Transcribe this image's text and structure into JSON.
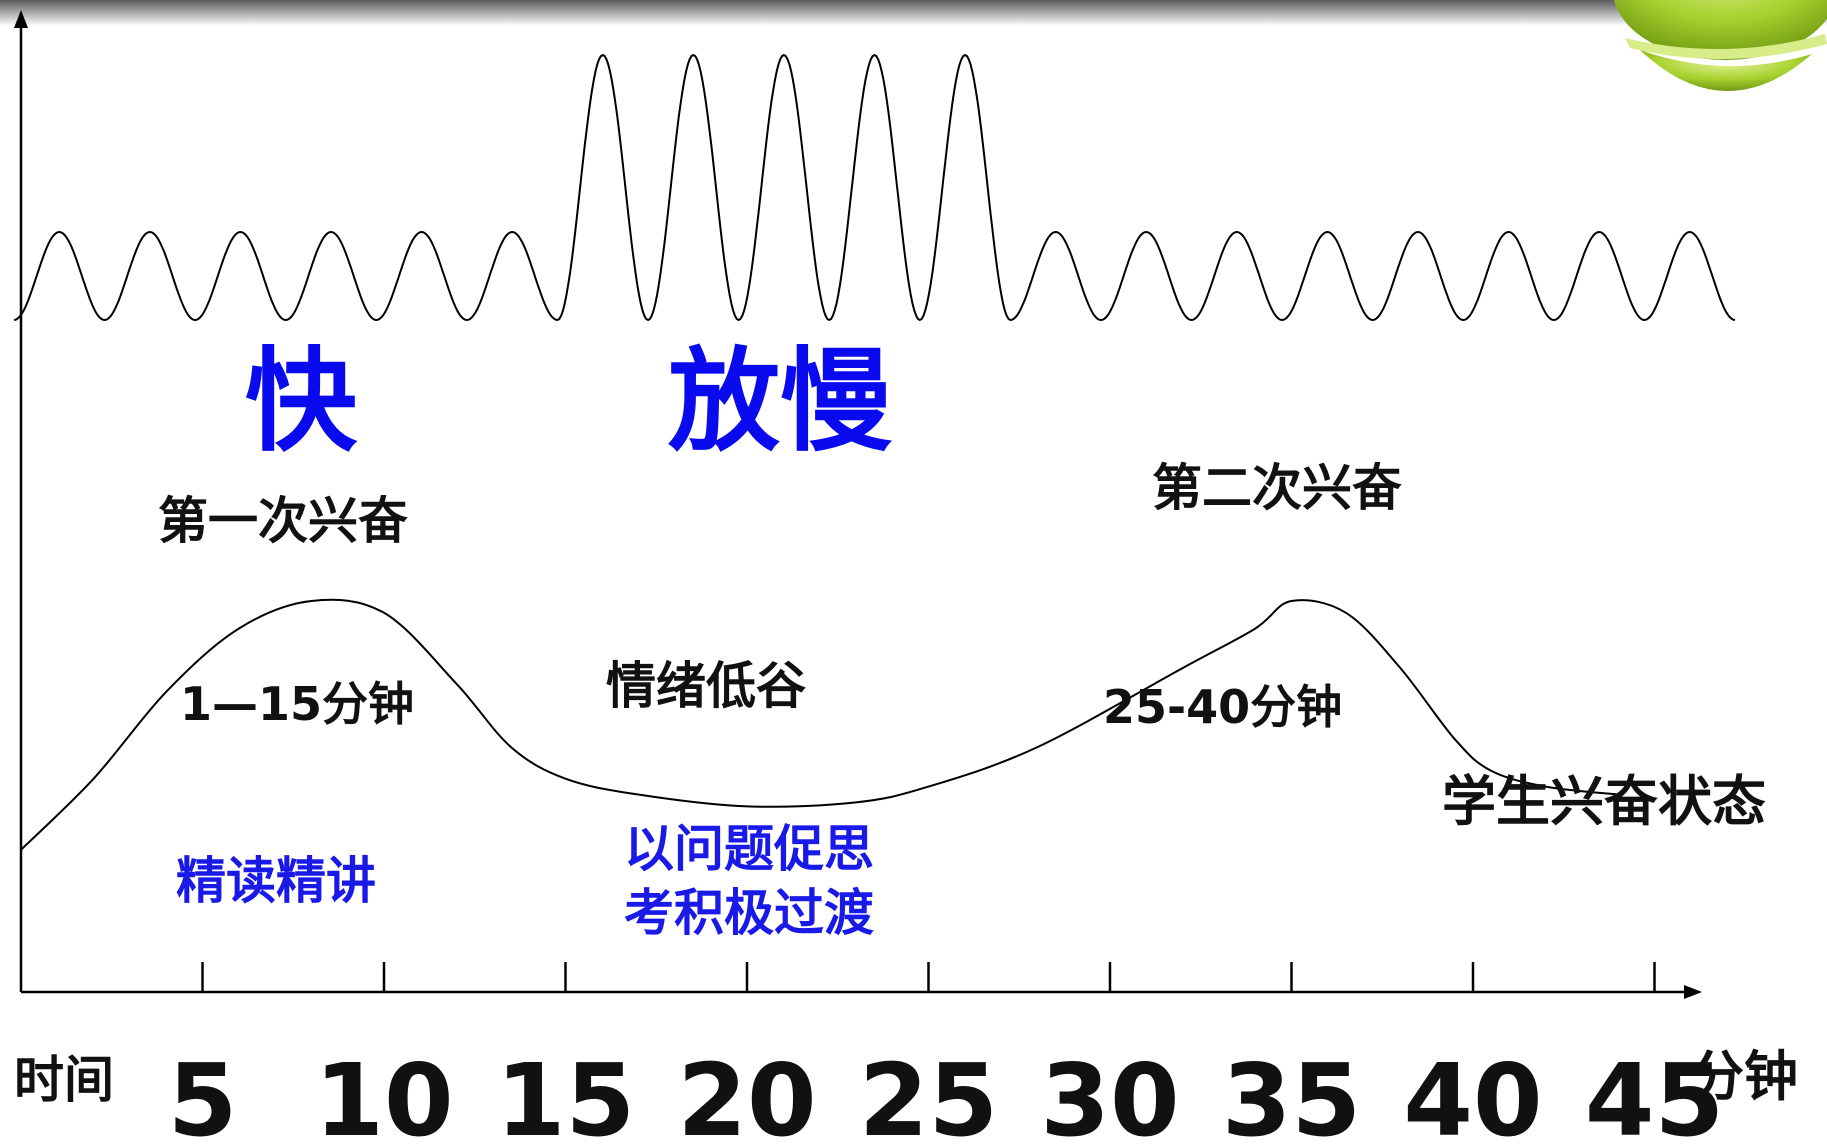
{
  "chart_data": {
    "type": "line",
    "x_axis": {
      "label": "时间",
      "unit": "分钟",
      "ticks": [
        "5",
        "10",
        "15",
        "20",
        "25",
        "30",
        "35",
        "40",
        "45"
      ],
      "range": [
        0,
        45
      ]
    },
    "series": [
      {
        "name": "学生兴奋状态",
        "points": [
          [
            0,
            18
          ],
          [
            2,
            27
          ],
          [
            4,
            38
          ],
          [
            6,
            46
          ],
          [
            8,
            49.5
          ],
          [
            10,
            48
          ],
          [
            12,
            39
          ],
          [
            13.5,
            31
          ],
          [
            15,
            27
          ],
          [
            17,
            25
          ],
          [
            20,
            23.5
          ],
          [
            23,
            24
          ],
          [
            25,
            26
          ],
          [
            28,
            31
          ],
          [
            32,
            41
          ],
          [
            34,
            46
          ],
          [
            35,
            49.5
          ],
          [
            36.5,
            48
          ],
          [
            38,
            41
          ],
          [
            39.5,
            32
          ],
          [
            40.5,
            28
          ],
          [
            42,
            26
          ],
          [
            44,
            25
          ]
        ]
      }
    ],
    "wave": {
      "segments": [
        {
          "from": 0,
          "to": 15,
          "period": 2.5,
          "level": "normal"
        },
        {
          "from": 15,
          "to": 27.5,
          "period": 2.5,
          "level": "high"
        },
        {
          "from": 27.5,
          "to": 47.5,
          "period": 2.5,
          "level": "normal"
        }
      ]
    },
    "annotations": {
      "fast": "快",
      "slow": "放慢",
      "first_peak": "第一次兴奋",
      "second_peak": "第二次兴奋",
      "range_1": "1—15分钟",
      "trough": "情绪低谷",
      "range_2": "25-40分钟",
      "series_label": "学生兴奋状态",
      "method_1": "精读精讲",
      "method_2_line1": "以问题促思",
      "method_2_line2": "考积极过渡"
    },
    "colors": {
      "curve": "#000000",
      "text_black": "#111111",
      "text_blue": "#1a1ae8",
      "emphasis_blue": "#0a0aee",
      "bowl_green": "#9cc92a"
    }
  }
}
